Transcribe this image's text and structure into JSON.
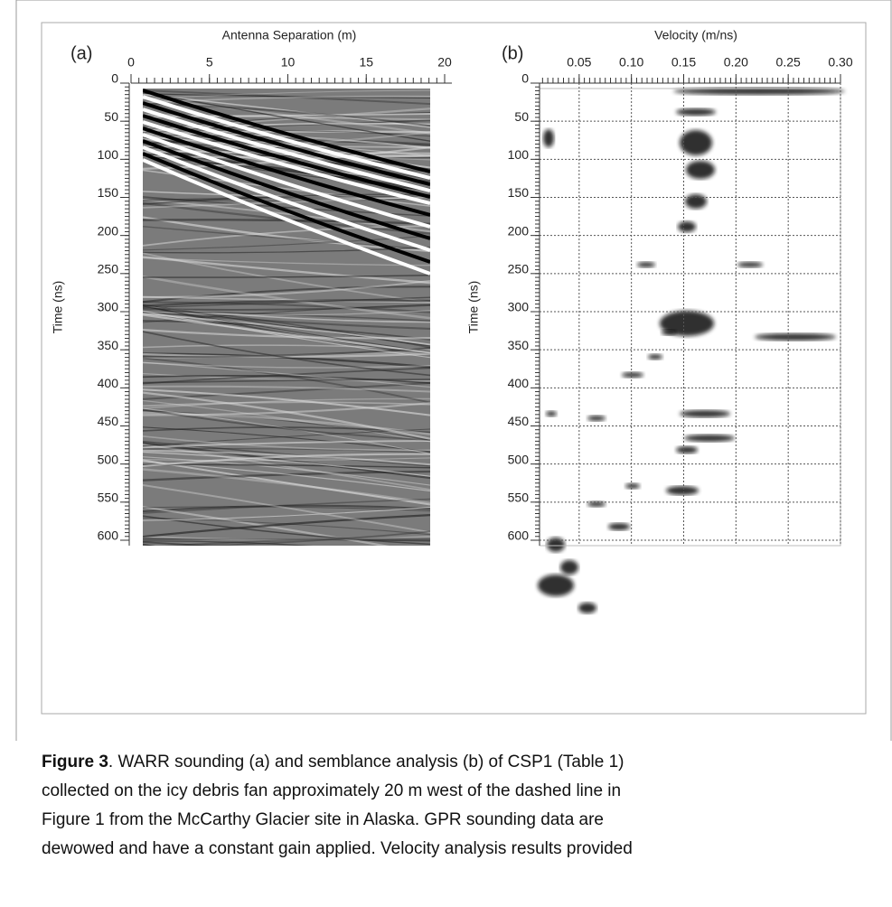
{
  "figure": {
    "panels": [
      {
        "label": "(a)",
        "xlabel": "Antenna Separation (m)",
        "ylabel": "Time (ns)",
        "xlim": [
          0,
          20
        ],
        "xticks": [
          0,
          5,
          10,
          15,
          20
        ],
        "ylim": [
          0,
          600
        ],
        "yticks": [
          0,
          50,
          100,
          150,
          200,
          250,
          300,
          350,
          400,
          450,
          500,
          550,
          600
        ]
      },
      {
        "label": "(b)",
        "xlabel": "Velocity (m/ns)",
        "ylabel": "Time (ns)",
        "xlim": [
          0,
          0.3
        ],
        "xticks": [
          0.05,
          {
            "value": 0.1,
            "label": "0.10"
          },
          0.15,
          {
            "value": 0.2,
            "label": "0.20"
          },
          0.25,
          {
            "value": 0.3,
            "label": "0.30"
          }
        ],
        "ylim": [
          0,
          600
        ],
        "yticks": [
          0,
          50,
          100,
          150,
          200,
          250,
          300,
          350,
          400,
          450,
          500,
          550,
          600
        ],
        "grid": true
      }
    ]
  },
  "caption": {
    "label": "Figure 3",
    "lines": [
      ". WARR sounding (a) and semblance analysis (b) of CSP1 (Table 1)",
      "collected on the icy debris fan approximately 20 m west of the dashed line in",
      "Figure 1 from the McCarthy Glacier site in Alaska. GPR sounding data are",
      "dewowed and have a constant gain applied. Velocity analysis results provided"
    ]
  }
}
